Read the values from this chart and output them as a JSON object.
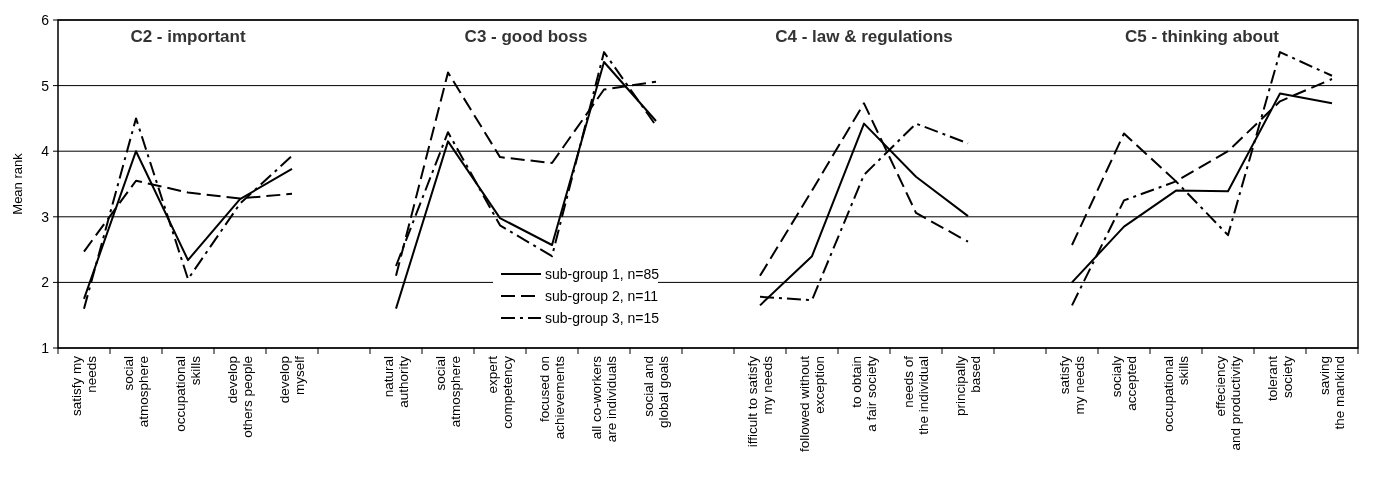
{
  "chart_data": {
    "type": "line",
    "ylabel": "Mean rank",
    "categories": [
      "satisfy my\nneeds",
      "social\natmosphere",
      "occupational\nskills",
      "develop\nothers people",
      "develop\nmyself",
      null,
      "natural\nauthority",
      "social\natmosphere",
      "expert\ncompetency",
      "focused on\nachievements",
      "all co-workers\nare individuals",
      "social and\nglobal goals",
      null,
      "ifficult to satisfy\nmy needs",
      "followed without\nexception",
      "to obtain\na fair society",
      "needs of\nthe individual",
      "principally\nbased",
      null,
      "satisfy\nmy needs",
      "socialy\naccepted",
      "occupational\nskills",
      "effeciency\nand productivity",
      "tolerant\nsociety",
      "saving\nthe mankind"
    ],
    "series": [
      {
        "name": "sub-group 1, n=85",
        "color": "#000000",
        "line_style": "solid",
        "values": [
          1.75,
          4.0,
          2.34,
          3.27,
          3.73,
          null,
          1.6,
          4.15,
          2.98,
          2.57,
          5.36,
          4.46,
          null,
          1.65,
          2.4,
          4.42,
          3.61,
          3.01,
          null,
          2.0,
          2.85,
          3.4,
          3.39,
          4.88,
          4.73
        ]
      },
      {
        "name": "sub-group 2, n=11",
        "color": "#000000",
        "line_style": "dashed",
        "values": [
          2.47,
          3.55,
          3.37,
          3.28,
          3.35,
          null,
          2.1,
          5.2,
          3.91,
          3.82,
          4.94,
          5.06,
          null,
          2.1,
          3.4,
          4.73,
          3.06,
          2.62,
          null,
          2.57,
          4.27,
          3.54,
          4.0,
          4.76,
          5.1
        ]
      },
      {
        "name": "sub-group 3, n=15",
        "color": "#000000",
        "line_style": "dashdot",
        "values": [
          1.6,
          4.5,
          2.05,
          3.2,
          3.93,
          null,
          2.25,
          4.29,
          2.87,
          2.4,
          5.51,
          4.39,
          null,
          1.78,
          1.73,
          3.64,
          4.42,
          4.12,
          null,
          1.65,
          3.25,
          3.54,
          2.72,
          5.51,
          5.15
        ]
      }
    ],
    "annotations": [
      "C2 - important",
      "C3 - good boss",
      "C4 - law & regulations",
      "C5 - thinking about"
    ],
    "ylim": [
      1,
      6
    ],
    "yticks": [
      1,
      2,
      3,
      4,
      5,
      6
    ],
    "grid": "y",
    "legend": "bottom",
    "marker": "none"
  }
}
